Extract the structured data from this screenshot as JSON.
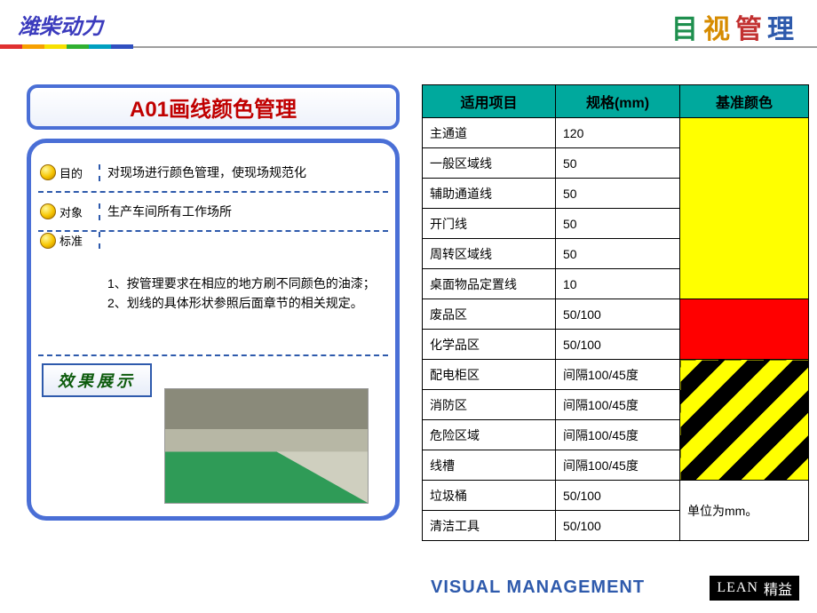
{
  "header": {
    "company": "潍柴动力",
    "title_chars": [
      "目",
      "视",
      "管",
      "理"
    ],
    "rainbow_colors": [
      "#e03030",
      "#f7a000",
      "#f7e000",
      "#30b030",
      "#00a0c0",
      "#3050c0"
    ]
  },
  "left": {
    "title": "A01画线颜色管理",
    "rows": [
      {
        "label": "目的",
        "text": "对现场进行颜色管理，使现场规范化"
      },
      {
        "label": "对象",
        "text": "生产车间所有工作场所"
      },
      {
        "label": "标准",
        "text": "1、按管理要求在相应的地方刷不同颜色的油漆；\n2、划线的具体形状参照后面章节的相关规定。"
      }
    ],
    "result_label": "效果展示"
  },
  "table": {
    "headers": [
      "适用项目",
      "规格(mm)",
      "基准颜色"
    ],
    "groups": [
      {
        "swatch": "yellow",
        "rows": [
          {
            "item": "主通道",
            "spec": "120"
          },
          {
            "item": "一般区域线",
            "spec": "50"
          },
          {
            "item": "辅助通道线",
            "spec": "50"
          },
          {
            "item": "开门线",
            "spec": "50"
          },
          {
            "item": "周转区域线",
            "spec": "50"
          },
          {
            "item": "桌面物品定置线",
            "spec": "10"
          }
        ]
      },
      {
        "swatch": "red",
        "rows": [
          {
            "item": "废品区",
            "spec": "50/100"
          },
          {
            "item": "化学品区",
            "spec": "50/100"
          }
        ]
      },
      {
        "swatch": "stripe",
        "rows": [
          {
            "item": "配电柜区",
            "spec": "间隔100/45度"
          },
          {
            "item": "消防区",
            "spec": "间隔100/45度"
          },
          {
            "item": "危险区域",
            "spec": "间隔100/45度"
          },
          {
            "item": "线槽",
            "spec": "间隔100/45度"
          }
        ]
      },
      {
        "swatch": "note",
        "note": "单位为mm。",
        "rows": [
          {
            "item": "垃圾桶",
            "spec": "50/100"
          },
          {
            "item": "清洁工具",
            "spec": "50/100"
          }
        ]
      }
    ]
  },
  "footer": {
    "visual": "VISUAL MANAGEMENT",
    "lean_en": "LEAN",
    "lean_cn": "精益"
  },
  "colors": {
    "title_red": "#c00000",
    "frame_blue": "#4a6fd6",
    "header_teal": "#00a99d",
    "yellow": "#ffff00",
    "red": "#ff0000",
    "footer_blue": "#2e5aac"
  }
}
